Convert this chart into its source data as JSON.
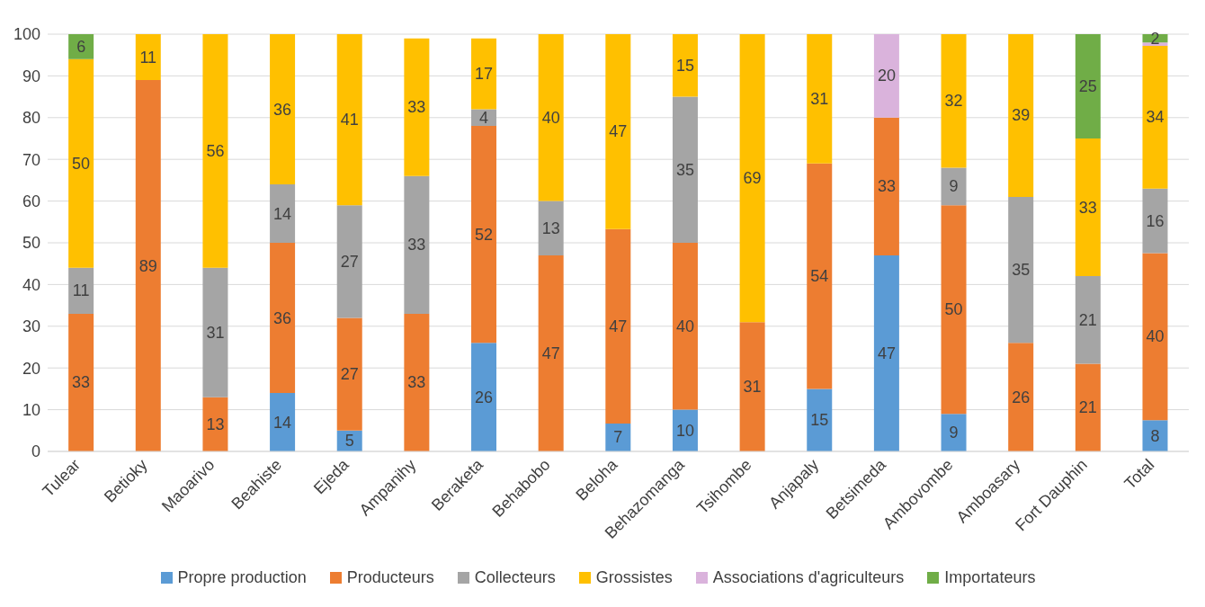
{
  "chart_data": {
    "type": "bar",
    "stacked": true,
    "categories": [
      "Tulear",
      "Betioky",
      "Maoarivo",
      "Beahiste",
      "Ejeda",
      "Ampanihy",
      "Beraketa",
      "Behabobo",
      "Beloha",
      "Behazomanga",
      "Tsihombe",
      "Anjapaly",
      "Betsimeda",
      "Ambovombe",
      "Amboasary",
      "Fort Dauphin",
      "Total"
    ],
    "series": [
      {
        "name": "Propre production",
        "color": "#5b9bd5",
        "values": [
          null,
          null,
          null,
          14,
          5,
          null,
          26,
          null,
          6.7,
          10,
          null,
          15,
          47,
          9,
          null,
          null,
          7.5
        ],
        "value_labels": [
          null,
          null,
          null,
          "14",
          "5",
          null,
          "26",
          null,
          "7",
          "10",
          null,
          "15",
          "47",
          "9",
          null,
          null,
          "8"
        ]
      },
      {
        "name": "Producteurs",
        "color": "#ed7d31",
        "values": [
          33,
          89,
          13,
          36,
          27,
          33,
          52,
          47,
          46.6,
          40,
          31,
          54,
          33,
          50,
          26,
          21,
          40
        ],
        "value_labels": [
          "33",
          "89",
          "13",
          "36",
          "27",
          "33",
          "52",
          "47",
          "47",
          "40",
          "31",
          "54",
          "33",
          "50",
          "26",
          "21",
          "40"
        ]
      },
      {
        "name": "Collecteurs",
        "color": "#a5a5a5",
        "values": [
          11,
          null,
          31,
          14,
          27,
          33,
          4,
          13,
          null,
          35,
          null,
          null,
          null,
          9,
          35,
          21,
          15.5
        ],
        "value_labels": [
          "11",
          null,
          "31",
          "14",
          "27",
          "33",
          "4",
          "13",
          null,
          "35",
          null,
          null,
          null,
          "9",
          "35",
          "21",
          "16"
        ]
      },
      {
        "name": "Grossistes",
        "color": "#ffc000",
        "values": [
          50,
          11,
          56,
          36,
          41,
          33,
          17,
          40,
          46.7,
          15,
          69,
          31,
          null,
          32,
          39,
          33,
          34.2
        ],
        "value_labels": [
          "50",
          "11",
          "56",
          "36",
          "41",
          "33",
          "17",
          "40",
          "47",
          "15",
          "69",
          "31",
          null,
          "32",
          "39",
          "33",
          "34"
        ]
      },
      {
        "name": "Associations d'agriculteurs",
        "color": "#dab3dc",
        "values": [
          null,
          null,
          null,
          null,
          null,
          null,
          null,
          null,
          null,
          null,
          null,
          null,
          20,
          null,
          null,
          null,
          0.8
        ],
        "value_labels": [
          null,
          null,
          null,
          null,
          null,
          null,
          null,
          null,
          null,
          null,
          null,
          null,
          "20",
          null,
          null,
          null,
          null
        ]
      },
      {
        "name": "Importateurs",
        "color": "#70ad47",
        "values": [
          6,
          null,
          null,
          null,
          null,
          null,
          null,
          null,
          null,
          null,
          null,
          null,
          null,
          null,
          null,
          25,
          2
        ],
        "value_labels": [
          "6",
          null,
          null,
          null,
          null,
          null,
          null,
          null,
          null,
          null,
          null,
          null,
          null,
          null,
          null,
          "25",
          "2"
        ]
      }
    ],
    "ylim": [
      0,
      100
    ],
    "yticks": [
      0,
      10,
      20,
      30,
      40,
      50,
      60,
      70,
      80,
      90,
      100
    ],
    "grid": "y",
    "legend": "bottom"
  }
}
